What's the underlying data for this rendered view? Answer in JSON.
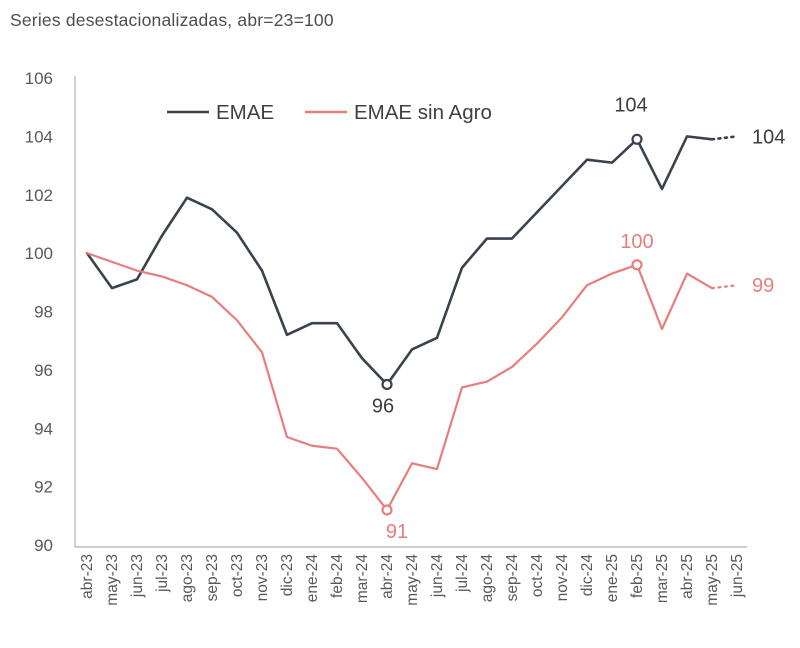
{
  "title": "Series desestacionalizadas, abr=23=100",
  "colors": {
    "emae": "#39424e",
    "sin_agro": "#e87d7d",
    "axis": "#b9bec4",
    "tick_text": "#595959",
    "legend_text": "#404040",
    "emae_label_text": "#3d3d3d"
  },
  "legend": [
    {
      "label": "EMAE",
      "color_key": "emae"
    },
    {
      "label": "EMAE sin Agro",
      "color_key": "sin_agro"
    }
  ],
  "chart_data": {
    "type": "line",
    "title": "Series desestacionalizadas, abr=23=100",
    "ylim": [
      90,
      106
    ],
    "yticks": [
      90,
      92,
      94,
      96,
      98,
      100,
      102,
      104,
      106
    ],
    "grid": false,
    "legend_position": "top",
    "categories": [
      "abr-23",
      "may-23",
      "jun-23",
      "jul-23",
      "ago-23",
      "sep-23",
      "oct-23",
      "nov-23",
      "dic-23",
      "ene-24",
      "feb-24",
      "mar-24",
      "abr-24",
      "may-24",
      "jun-24",
      "jul-24",
      "ago-24",
      "sep-24",
      "oct-24",
      "nov-24",
      "dic-24",
      "ene-25",
      "feb-25",
      "mar-25",
      "abr-25",
      "may-25",
      "jun-25"
    ],
    "series": [
      {
        "name": "EMAE",
        "color": "#39424e",
        "label_color": "#3d3d3d",
        "values": [
          100,
          98.8,
          99.1,
          100.6,
          101.9,
          101.5,
          100.7,
          99.4,
          97.2,
          97.6,
          97.6,
          96.4,
          95.5,
          96.7,
          97.1,
          99.5,
          100.5,
          100.5,
          101.4,
          102.3,
          103.2,
          103.1,
          103.9,
          102.2,
          104,
          103.9,
          104
        ],
        "dotted_from_index": 25,
        "annotations": [
          {
            "index": 12,
            "label": "96",
            "marker": true,
            "dx": -4,
            "dy": 28
          },
          {
            "index": 22,
            "label": "104",
            "marker": true,
            "dx": -6,
            "dy": -28
          }
        ],
        "end_label": "104"
      },
      {
        "name": "EMAE sin Agro",
        "color": "#e87d7d",
        "label_color": "#e87d7d",
        "values": [
          100,
          99.7,
          99.4,
          99.2,
          98.9,
          98.5,
          97.7,
          96.6,
          93.7,
          93.4,
          93.3,
          92.3,
          91.2,
          92.8,
          92.6,
          95.4,
          95.6,
          96.1,
          96.9,
          97.8,
          98.9,
          99.3,
          99.6,
          97.4,
          99.3,
          98.8,
          98.9
        ],
        "dotted_from_index": 25,
        "annotations": [
          {
            "index": 12,
            "label": "91",
            "marker": true,
            "dx": 10,
            "dy": 28
          },
          {
            "index": 22,
            "label": "100",
            "marker": true,
            "dx": 0,
            "dy": -17
          }
        ],
        "end_label": "99"
      }
    ]
  }
}
